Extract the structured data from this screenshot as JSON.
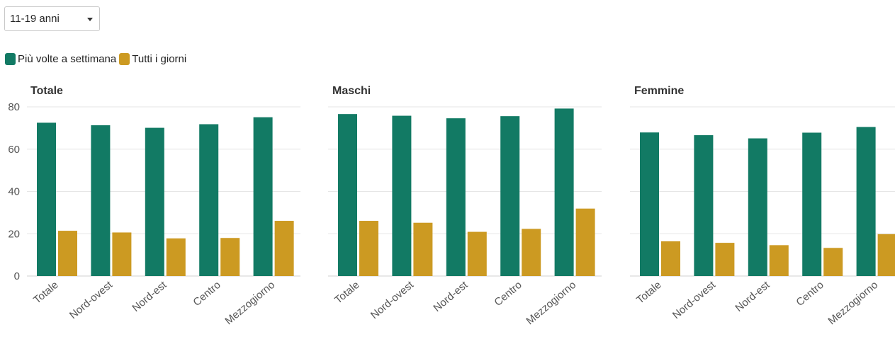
{
  "filter": {
    "selected": "11-19 anni"
  },
  "legend": [
    {
      "label": "Più volte a settimana",
      "color": "#127a64"
    },
    {
      "label": "Tutti i giorni",
      "color": "#cc9a22"
    }
  ],
  "colors": {
    "grid": "#e6e6e6",
    "axis": "#d0d0d0"
  },
  "chart_data": [
    {
      "type": "bar",
      "title": "Totale",
      "categories": [
        "Totale",
        "Nord-ovest",
        "Nord-est",
        "Centro",
        "Mezzogiorno"
      ],
      "series": [
        {
          "name": "Più volte a settimana",
          "values": [
            72.5,
            71.3,
            70.1,
            71.8,
            75.1
          ]
        },
        {
          "name": "Tutti i giorni",
          "values": [
            21.4,
            20.6,
            17.8,
            18.0,
            26.1
          ]
        }
      ],
      "ylim": [
        0,
        80
      ],
      "yticks": [
        0,
        20,
        40,
        60,
        80
      ],
      "grid": true
    },
    {
      "type": "bar",
      "title": "Maschi",
      "categories": [
        "Totale",
        "Nord-ovest",
        "Nord-est",
        "Centro",
        "Mezzogiorno"
      ],
      "series": [
        {
          "name": "Più volte a settimana",
          "values": [
            76.6,
            75.8,
            74.6,
            75.6,
            79.2
          ]
        },
        {
          "name": "Tutti i giorni",
          "values": [
            26.1,
            25.2,
            20.9,
            22.3,
            31.9
          ]
        }
      ],
      "ylim": [
        0,
        80
      ],
      "yticks": [
        0,
        20,
        40,
        60,
        80
      ],
      "grid": true
    },
    {
      "type": "bar",
      "title": "Femmine",
      "categories": [
        "Totale",
        "Nord-ovest",
        "Nord-est",
        "Centro",
        "Mezzogiorno"
      ],
      "series": [
        {
          "name": "Più volte a settimana",
          "values": [
            67.9,
            66.6,
            65.1,
            67.8,
            70.5
          ]
        },
        {
          "name": "Tutti i giorni",
          "values": [
            16.4,
            15.7,
            14.6,
            13.3,
            19.8
          ]
        }
      ],
      "ylim": [
        0,
        80
      ],
      "yticks": [
        0,
        20,
        40,
        60,
        80
      ],
      "grid": true
    }
  ]
}
